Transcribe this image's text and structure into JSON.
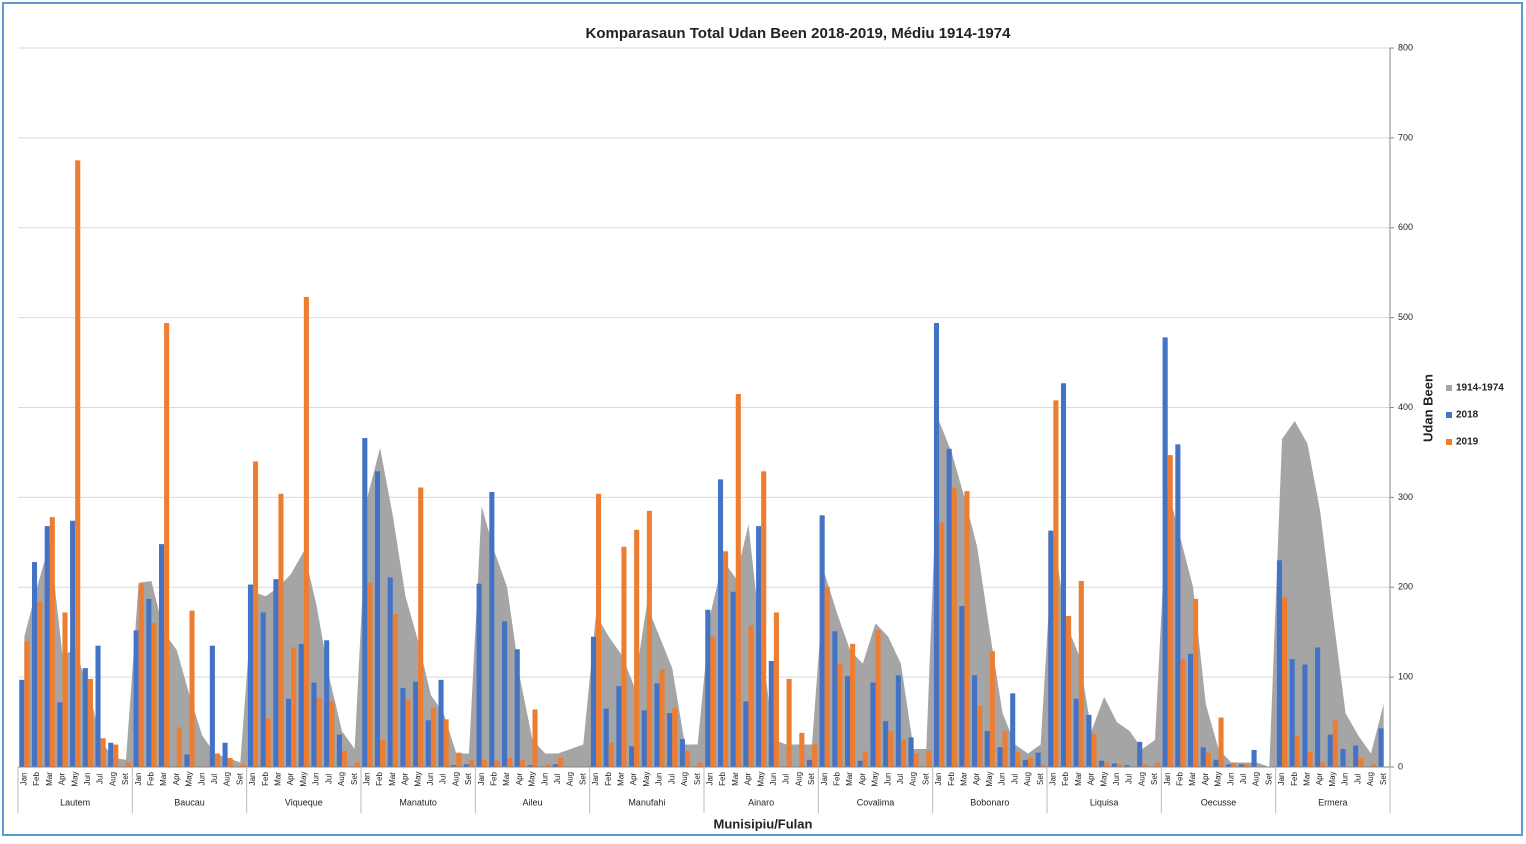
{
  "chart_data": {
    "type": "bar",
    "title": "Komparasaun Total Udan Been 2018-2019, Médiu 1914-1974",
    "x_label": "Munisipiu/Fulan",
    "y_label": "Udan Been",
    "groups": [
      "Lautem",
      "Baucau",
      "Viqueque",
      "Manatuto",
      "Aileu",
      "Manufahi",
      "Ainaro",
      "Covalima",
      "Bobonaro",
      "Liquisa",
      "Oecusse",
      "Ermera"
    ],
    "categories": [
      "Jan",
      "Feb",
      "Mar",
      "Apr",
      "May",
      "Jun",
      "Jul",
      "Aug",
      "Set",
      "Jan",
      "Feb",
      "Mar",
      "Apr",
      "May",
      "Jun",
      "Jul",
      "Aug",
      "Set",
      "Jan",
      "Feb",
      "Mar",
      "Apr",
      "May",
      "Jun",
      "Jul",
      "Aug",
      "Set",
      "Jan",
      "Feb",
      "Mar",
      "Apr",
      "May",
      "Jun",
      "Jul",
      "Aug",
      "Set",
      "Jan",
      "Feb",
      "Mar",
      "Apr",
      "May",
      "Jun",
      "Jul",
      "Aug",
      "Set",
      "Jan",
      "Feb",
      "Mar",
      "Apr",
      "May",
      "Jun",
      "Jul",
      "Aug",
      "Set",
      "Jan",
      "Feb",
      "Mar",
      "Apr",
      "May",
      "Jun",
      "Jul",
      "Aug",
      "Set",
      "Jan",
      "Feb",
      "Mar",
      "Apr",
      "May",
      "Jun",
      "Jul",
      "Aug",
      "Set",
      "Jan",
      "Feb",
      "Mar",
      "Apr",
      "May",
      "Jun",
      "Jul",
      "Aug",
      "Set",
      "Jan",
      "Feb",
      "Mar",
      "Apr",
      "May",
      "Jun",
      "Jul",
      "Aug",
      "Set",
      "Jan",
      "Feb",
      "Mar",
      "Apr",
      "May",
      "Jun",
      "Jul",
      "Aug",
      "Set",
      "Jan",
      "Feb",
      "Mar",
      "Apr",
      "May",
      "Jun",
      "Jul",
      "Aug",
      "Set"
    ],
    "series": [
      {
        "name": "1914-1974",
        "type": "area",
        "color": "#a5a5a5",
        "values": [
          145,
          200,
          250,
          125,
          130,
          90,
          30,
          10,
          8,
          205,
          207,
          150,
          130,
          80,
          35,
          15,
          10,
          5,
          195,
          190,
          200,
          215,
          240,
          180,
          100,
          40,
          20,
          300,
          355,
          280,
          190,
          140,
          80,
          60,
          15,
          15,
          290,
          240,
          200,
          100,
          30,
          15,
          15,
          20,
          25,
          170,
          145,
          125,
          90,
          180,
          145,
          110,
          25,
          25,
          170,
          230,
          210,
          270,
          140,
          30,
          25,
          25,
          25,
          215,
          170,
          130,
          115,
          160,
          145,
          115,
          20,
          20,
          385,
          350,
          300,
          245,
          150,
          60,
          25,
          15,
          25,
          260,
          160,
          125,
          40,
          78,
          50,
          40,
          20,
          30,
          310,
          255,
          200,
          70,
          20,
          5,
          5,
          5,
          0,
          365,
          385,
          360,
          285,
          170,
          60,
          35,
          15,
          70
        ]
      },
      {
        "name": "2018",
        "type": "bar",
        "color": "#4472c4",
        "values": [
          97,
          228,
          268,
          72,
          274,
          110,
          135,
          27,
          0,
          152,
          187,
          248,
          0,
          14,
          0,
          135,
          27,
          0,
          203,
          172,
          209,
          76,
          137,
          94,
          141,
          36,
          0,
          366,
          329,
          211,
          88,
          95,
          52,
          97,
          2,
          3,
          204,
          306,
          162,
          131,
          2,
          0,
          3,
          0,
          0,
          145,
          65,
          90,
          23,
          63,
          93,
          60,
          31,
          0,
          175,
          320,
          195,
          73,
          268,
          118,
          0,
          0,
          8,
          280,
          151,
          101,
          7,
          94,
          51,
          102,
          33,
          0,
          494,
          354,
          179,
          102,
          40,
          22,
          82,
          8,
          16,
          263,
          427,
          76,
          58,
          7,
          4,
          2,
          28,
          0,
          478,
          359,
          126,
          22,
          8,
          3,
          3,
          19,
          0,
          230,
          120,
          114,
          133,
          36,
          20,
          24,
          0,
          43
        ]
      },
      {
        "name": "2019",
        "type": "bar",
        "color": "#ed7d31",
        "values": [
          140,
          184,
          278,
          172,
          675,
          98,
          32,
          25,
          5,
          204,
          160,
          494,
          44,
          174,
          0,
          15,
          10,
          3,
          340,
          54,
          304,
          133,
          523,
          77,
          73,
          18,
          5,
          205,
          30,
          170,
          75,
          311,
          66,
          53,
          16,
          8,
          8,
          7,
          10,
          8,
          64,
          3,
          10,
          0,
          0,
          304,
          27,
          245,
          264,
          285,
          109,
          66,
          18,
          5,
          145,
          240,
          415,
          158,
          329,
          172,
          98,
          38,
          25,
          200,
          115,
          137,
          17,
          152,
          40,
          30,
          15,
          18,
          272,
          310,
          307,
          68,
          129,
          40,
          17,
          10,
          2,
          408,
          168,
          207,
          37,
          5,
          3,
          0,
          3,
          5,
          347,
          120,
          187,
          16,
          55,
          5,
          3,
          0,
          0,
          189,
          35,
          17,
          5,
          52,
          0,
          10,
          3,
          0
        ]
      }
    ],
    "ylim": [
      0,
      800
    ],
    "yticks": [
      0,
      100,
      200,
      300,
      400,
      500,
      600,
      700,
      800
    ],
    "grid": true,
    "legend": "right"
  }
}
